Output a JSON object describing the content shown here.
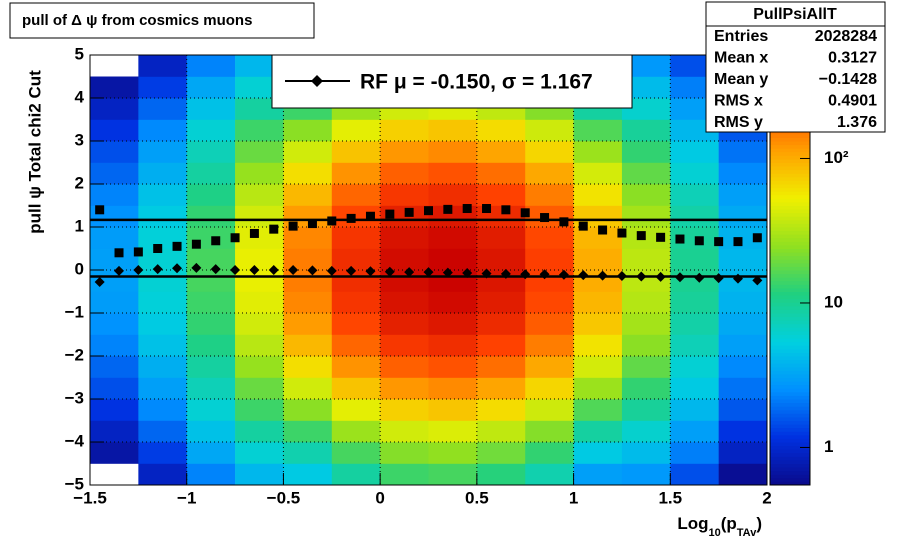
{
  "chart_data": {
    "type": "heatmap",
    "title": "pull of Δ ψ from cosmics muons",
    "xlabel_parts": [
      "Log",
      "10",
      "(p",
      "TAv",
      ")"
    ],
    "ylabel": "pull ψ   Total chi2 Cut",
    "xlim": [
      -1.5,
      2
    ],
    "ylim": [
      -5,
      5
    ],
    "xticks": [
      {
        "value": -1.5,
        "label": "−1.5"
      },
      {
        "value": -1,
        "label": "−1"
      },
      {
        "value": -0.5,
        "label": "−0.5"
      },
      0,
      0.5,
      1,
      1.5,
      2
    ],
    "yticks": [
      {
        "value": -5,
        "label": "−5"
      },
      {
        "value": -4,
        "label": "−4"
      },
      {
        "value": -3,
        "label": "−3"
      },
      {
        "value": -2,
        "label": "−2"
      },
      {
        "value": -1,
        "label": "−1"
      },
      0,
      1,
      2,
      3,
      4,
      5
    ],
    "grid": true,
    "zlim": [
      0.55,
      520
    ],
    "zlog": true,
    "zticks": [
      1,
      10,
      {
        "value": 100,
        "label": "10²"
      }
    ],
    "palette": [
      "#0a0a8a",
      "#0030e0",
      "#0090ff",
      "#00d0e0",
      "#20d080",
      "#90e020",
      "#f0f000",
      "#ffa000",
      "#ff4000",
      "#c80000"
    ],
    "xbins": [
      -1.5,
      -1.25,
      -1,
      -0.75,
      -0.5,
      -0.25,
      0,
      0.25,
      0.5,
      0.75,
      1,
      1.25,
      1.5,
      1.75,
      2
    ],
    "ybins": [
      -5,
      -4.5,
      -4,
      -3.5,
      -3,
      -2.5,
      -2,
      -1.5,
      -1,
      -0.5,
      0,
      0.5,
      1,
      1.5,
      2,
      2.5,
      3,
      3.5,
      4,
      4.5,
      5
    ],
    "z": [
      [
        0.5,
        0.9,
        2.3,
        4,
        5,
        9,
        14,
        15,
        12,
        8,
        3,
        2.8,
        1.5,
        0.6
      ],
      [
        0.7,
        1.3,
        3.3,
        6,
        8,
        15,
        23,
        25,
        20,
        13,
        5,
        4.2,
        2.2,
        0.9
      ],
      [
        0.9,
        1.8,
        4.5,
        9,
        14,
        27,
        41,
        45,
        36,
        23,
        9,
        6.3,
        3,
        1.2
      ],
      [
        1.2,
        2.4,
        6,
        14,
        24,
        48,
        72,
        80,
        64,
        40,
        16,
        9.5,
        4,
        1.6
      ],
      [
        1.5,
        3,
        7.5,
        19,
        41,
        81,
        122,
        135,
        108,
        68,
        27,
        13,
        5,
        2
      ],
      [
        1.8,
        3.6,
        9,
        26,
        63,
        126,
        189,
        210,
        168,
        105,
        42,
        18,
        6,
        2.4
      ],
      [
        2.3,
        4.5,
        11,
        34,
        90,
        180,
        270,
        300,
        240,
        150,
        60,
        24,
        7.5,
        3
      ],
      [
        2.6,
        5.1,
        13,
        41,
        117,
        234,
        351,
        390,
        312,
        195,
        78,
        29,
        8.5,
        3.4
      ],
      [
        2.9,
        5.7,
        14,
        47,
        138,
        276,
        414,
        460,
        368,
        230,
        92,
        33,
        9.5,
        3.8
      ],
      [
        3,
        6,
        15,
        50,
        150,
        300,
        450,
        500,
        400,
        250,
        100,
        35,
        10,
        4
      ],
      [
        3,
        6,
        15,
        50,
        150,
        300,
        450,
        500,
        400,
        250,
        100,
        35,
        10,
        4
      ],
      [
        2.9,
        5.7,
        14,
        47,
        138,
        276,
        414,
        460,
        368,
        230,
        92,
        33,
        9.5,
        3.8
      ],
      [
        2.6,
        5.1,
        13,
        41,
        117,
        234,
        351,
        390,
        312,
        195,
        78,
        29,
        8.5,
        3.4
      ],
      [
        2.3,
        4.5,
        11,
        34,
        90,
        180,
        270,
        300,
        240,
        150,
        60,
        24,
        7.5,
        3
      ],
      [
        1.8,
        3.6,
        9,
        26,
        63,
        126,
        189,
        210,
        168,
        105,
        42,
        18,
        6,
        2.4
      ],
      [
        1.5,
        3,
        7.5,
        19,
        41,
        81,
        122,
        135,
        108,
        68,
        27,
        13,
        5,
        2
      ],
      [
        1.2,
        2.4,
        6,
        14,
        24,
        48,
        72,
        80,
        64,
        40,
        16,
        9.5,
        4,
        1.6
      ],
      [
        0.9,
        1.8,
        4.5,
        9,
        14,
        27,
        41,
        45,
        36,
        23,
        9,
        6.3,
        3,
        1.2
      ],
      [
        0.7,
        1.3,
        3.3,
        6,
        8,
        15,
        23,
        25,
        20,
        13,
        5,
        4.2,
        2.2,
        0.9
      ],
      [
        0.5,
        0.9,
        2.3,
        4,
        5,
        9,
        14,
        15,
        12,
        8,
        3,
        2.8,
        1.5,
        0.6
      ]
    ],
    "profile_x": [
      -1.45,
      -1.35,
      -1.25,
      -1.15,
      -1.05,
      -0.95,
      -0.85,
      -0.75,
      -0.65,
      -0.55,
      -0.45,
      -0.35,
      -0.25,
      -0.15,
      -0.05,
      0.05,
      0.15,
      0.25,
      0.35,
      0.45,
      0.55,
      0.65,
      0.75,
      0.85,
      0.95,
      1.05,
      1.15,
      1.25,
      1.35,
      1.45,
      1.55,
      1.65,
      1.75,
      1.85,
      1.95
    ],
    "series": [
      {
        "marker": "square",
        "color": "#000000",
        "values": [
          1.4,
          0.4,
          0.42,
          0.5,
          0.55,
          0.6,
          0.68,
          0.75,
          0.85,
          0.95,
          1.02,
          1.08,
          1.14,
          1.2,
          1.25,
          1.3,
          1.34,
          1.38,
          1.41,
          1.43,
          1.43,
          1.4,
          1.33,
          1.22,
          1.12,
          1.02,
          0.93,
          0.86,
          0.8,
          0.76,
          0.72,
          0.68,
          0.66,
          0.66,
          0.75
        ]
      },
      {
        "marker": "diamond",
        "color": "#000000",
        "values": [
          -0.28,
          -0.02,
          0,
          0.02,
          0.04,
          0.05,
          0.02,
          0,
          0,
          0,
          0,
          -0.01,
          -0.02,
          -0.02,
          -0.03,
          -0.04,
          -0.05,
          -0.05,
          -0.06,
          -0.07,
          -0.08,
          -0.09,
          -0.1,
          -0.1,
          -0.11,
          -0.12,
          -0.13,
          -0.14,
          -0.15,
          -0.16,
          -0.17,
          -0.18,
          -0.19,
          -0.2,
          -0.24
        ]
      }
    ],
    "hlines": [
      1.167,
      -0.15
    ],
    "legend": "RF μ = -0.150, σ =   1.167",
    "stats": {
      "name": "PullPsiAllT",
      "rows": [
        [
          "Entries",
          "2028284"
        ],
        [
          "Mean x",
          "0.3127"
        ],
        [
          "Mean y",
          "−0.1428"
        ],
        [
          "RMS x",
          "0.4901"
        ],
        [
          "RMS y",
          "1.376"
        ]
      ]
    }
  }
}
